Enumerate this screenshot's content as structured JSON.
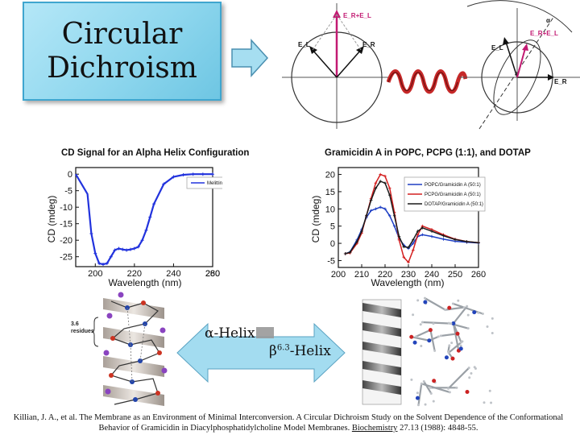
{
  "title": {
    "line1": "Circular",
    "line2": "Dichroism"
  },
  "polarization": {
    "left": {
      "sum": "E_R+E_L",
      "left": "E_L",
      "right": "E_R"
    },
    "right": {
      "sum": "E_R+E_L",
      "left": "E_L",
      "right": "E_R",
      "top": "α"
    }
  },
  "chart_left_title": "CD Signal for an Alpha Helix Configuration",
  "chart_right_title": "Gramicidin A in POPC, PCPG (1:1), and DOTAP",
  "helix_labels": {
    "alpha": "α-Helix",
    "beta_prefix": "β",
    "beta_sup": "6.3",
    "beta_suffix": "-Helix",
    "residues_top": "3.6",
    "residues_bottom": "residues"
  },
  "citation": {
    "before": "Killian, J. A., et al.  The Membrane as an Environment of Minimal Interconversion. A Circular Dichroism Study on the Solvent Dependence of the Conformational Behavior of Gramicidin in Diacylphosphatidylcholine Model Membranes.  ",
    "journal": "Biochemistry",
    "after": " 27.13 (1988): 4848-55."
  },
  "colors": {
    "title_bg": "#8fd7ee",
    "arrow": "#9fdcf0",
    "melittin": "#2233dd",
    "popc": "#1e3fc4",
    "pcpg": "#d42020",
    "dotap": "#1a1a1a",
    "vector": "#c21a72"
  },
  "chart_data": [
    {
      "type": "line",
      "title": "CD Signal for an Alpha Helix Configuration",
      "xlabel": "Wavelength (nm)",
      "ylabel": "CD (mdeg)",
      "xlim": [
        190,
        260
      ],
      "ylim": [
        -28,
        2
      ],
      "xticks": [
        "200",
        "220",
        "240",
        "260",
        "280"
      ],
      "yticks": [
        "0",
        "-5",
        "-10",
        "-15",
        "-20",
        "-25"
      ],
      "series": [
        {
          "name": "Melittin",
          "x": [
            198,
            200,
            202,
            204,
            206,
            208,
            210,
            212,
            214,
            216,
            218,
            220,
            222,
            224,
            226,
            228,
            230,
            235,
            240,
            245,
            250,
            255,
            260
          ],
          "y": [
            -18,
            -24,
            -27,
            -27.3,
            -27,
            -25,
            -23,
            -22.5,
            -22.8,
            -23,
            -22.8,
            -22.5,
            -22,
            -20,
            -17,
            -13,
            -9,
            -3,
            -0.8,
            -0.2,
            0,
            0,
            0
          ]
        }
      ]
    },
    {
      "type": "line",
      "title": "Gramicidin A in POPC, PCPG (1:1), and DOTAP",
      "xlabel": "Wavelength (nm)",
      "ylabel": "CD (mdeg)",
      "xlim": [
        200,
        260
      ],
      "ylim": [
        -7,
        22
      ],
      "xticks": [
        "200",
        "210",
        "220",
        "230",
        "240",
        "250",
        "260"
      ],
      "yticks": [
        "20",
        "15",
        "10",
        "5",
        "0",
        "-5"
      ],
      "series": [
        {
          "name": "POPC/Gramicidin A (50:1)",
          "x": [
            203,
            205,
            208,
            210,
            212,
            214,
            216,
            218,
            220,
            222,
            224,
            226,
            228,
            230,
            232,
            234,
            236,
            240,
            245,
            250,
            255,
            260
          ],
          "y": [
            -3,
            -2.5,
            1,
            4,
            7.5,
            9.5,
            10,
            10.5,
            10,
            8,
            5,
            1.5,
            -0.5,
            -1.5,
            0,
            2,
            2.5,
            2,
            1.2,
            0.6,
            0.3,
            0.1
          ]
        },
        {
          "name": "PCPG/Gramicidin A (50:1)",
          "x": [
            203,
            205,
            208,
            210,
            212,
            214,
            216,
            218,
            220,
            222,
            224,
            226,
            228,
            230,
            232,
            234,
            236,
            240,
            245,
            250,
            255,
            260
          ],
          "y": [
            -3,
            -2.8,
            0,
            3,
            8,
            13,
            17.5,
            20,
            19.5,
            16,
            9,
            1,
            -4,
            -5.5,
            -2,
            2.5,
            5,
            4,
            2.5,
            1.2,
            0.5,
            0.2
          ]
        },
        {
          "name": "DOTAP/Gramicidin A (50:1)",
          "x": [
            203,
            205,
            208,
            210,
            212,
            214,
            216,
            218,
            220,
            222,
            224,
            226,
            228,
            230,
            232,
            234,
            236,
            240,
            245,
            250,
            255,
            260
          ],
          "y": [
            -3,
            -2.6,
            0.5,
            3.5,
            8,
            12.5,
            16,
            18,
            17.5,
            14,
            8,
            2,
            -1,
            -1.2,
            1,
            3.5,
            4.5,
            3.5,
            2.2,
            1.1,
            0.5,
            0.2
          ]
        }
      ]
    }
  ]
}
